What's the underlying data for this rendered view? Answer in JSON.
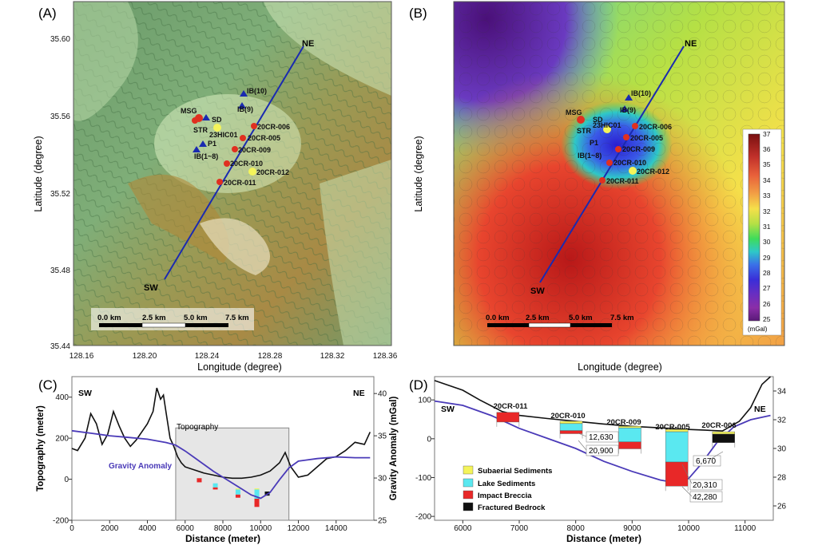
{
  "panels": {
    "A": {
      "label": "(A)",
      "xlabel": "Longitude (degree)",
      "ylabel": "Latitude (degree)",
      "xticks": [
        "128.16",
        "128.20",
        "128.24",
        "128.28",
        "128.32",
        "128.36"
      ],
      "yticks": [
        "35.60",
        "35.56",
        "35.52",
        "35.48",
        "35.44"
      ],
      "profile_ends": [
        "NE",
        "SW"
      ],
      "sites": [
        {
          "label": "MSG"
        },
        {
          "label": "SD"
        },
        {
          "label": "STR"
        },
        {
          "label": "23HIC01"
        },
        {
          "label": "P1"
        },
        {
          "label": "IB(1~8)"
        },
        {
          "label": "IB(9)"
        },
        {
          "label": "IB(10)"
        },
        {
          "label": "20CR-006"
        },
        {
          "label": "20CR-005"
        },
        {
          "label": "20CR-009"
        },
        {
          "label": "20CR-010"
        },
        {
          "label": "20CR-012"
        },
        {
          "label": "20CR-011"
        }
      ],
      "scalebar": [
        "0.0 km",
        "2.5 km",
        "5.0 km",
        "7.5 km"
      ]
    },
    "B": {
      "label": "(B)",
      "xlabel": "Longitude (degree)",
      "ylabel": "Latitude (degree)",
      "colorbar": {
        "ticks": [
          "37",
          "36",
          "35",
          "34",
          "33",
          "32",
          "31",
          "30",
          "29",
          "28",
          "27",
          "26",
          "25"
        ],
        "unit": "(mGal)",
        "colors": [
          "#7a1010",
          "#c0302a",
          "#e8603a",
          "#f2a045",
          "#f5e04a",
          "#b5e045",
          "#3fdc5a",
          "#2ec8c8",
          "#3a70e8",
          "#3a2ed8",
          "#6a2ec0",
          "#8a2ea8",
          "#5a1a78"
        ]
      }
    },
    "C": {
      "label": "(C)",
      "left_end": "SW",
      "right_end": "NE",
      "xlabel": "Distance (meter)",
      "ylabel_left": "Topography (meter)",
      "ylabel_right": "Gravity Anomaly (mGal)",
      "topo_label": "Topography",
      "gravity_label": "Gravity Anomaly",
      "xticks": [
        "0",
        "2000",
        "4000",
        "6000",
        "8000",
        "10000",
        "12000",
        "14000"
      ],
      "yticks_left": [
        "400",
        "200",
        "0",
        "-200"
      ],
      "yticks_right": [
        "40",
        "35",
        "30",
        "25"
      ]
    },
    "D": {
      "label": "(D)",
      "left_end": "SW",
      "right_end": "NE",
      "xlabel": "Distance (meter)",
      "xticks": [
        "6000",
        "7000",
        "8000",
        "9000",
        "10000",
        "11000"
      ],
      "yticks_left": [
        "100",
        "0",
        "-100",
        "-200"
      ],
      "yticks_right": [
        "34",
        "32",
        "30",
        "28",
        "26"
      ],
      "boreholes": [
        {
          "label": "20CR-011"
        },
        {
          "label": "20CR-010"
        },
        {
          "label": "20CR-009"
        },
        {
          "label": "20CR-005"
        },
        {
          "label": "20CR-006"
        }
      ],
      "ages": [
        "12,630",
        "20,900",
        "6,670",
        "20,310",
        "42,280"
      ],
      "legend": [
        {
          "label": "Subaerial Sediments",
          "color": "#f4f45a"
        },
        {
          "label": "Lake Sediments",
          "color": "#5ae8f0"
        },
        {
          "label": "Impact Breccia",
          "color": "#e82828"
        },
        {
          "label": "Fractured Bedrock",
          "color": "#101010"
        }
      ]
    }
  },
  "chart_data": [
    {
      "type": "line",
      "panel": "C",
      "xlabel": "Distance (meter)",
      "ylabel": "Topography (meter)",
      "xlim": [
        0,
        16000
      ],
      "ylim": [
        -200,
        500
      ],
      "y2lim": [
        25,
        42
      ],
      "series": [
        {
          "name": "Topography",
          "axis": "left",
          "x": [
            0,
            300,
            700,
            1000,
            1300,
            1600,
            1900,
            2200,
            2500,
            2800,
            3100,
            3400,
            3700,
            4000,
            4300,
            4500,
            4700,
            4850,
            5000,
            5200,
            5400,
            5600,
            5800,
            6000,
            6500,
            7000,
            7500,
            8000,
            8500,
            9000,
            9500,
            10000,
            10500,
            11000,
            11300,
            11600,
            12000,
            12500,
            13000,
            13500,
            14000,
            14500,
            15000,
            15500,
            15800
          ],
          "y": [
            150,
            140,
            200,
            320,
            270,
            170,
            220,
            330,
            260,
            200,
            160,
            190,
            230,
            270,
            330,
            445,
            390,
            410,
            320,
            200,
            160,
            110,
            80,
            60,
            45,
            30,
            20,
            10,
            5,
            5,
            10,
            20,
            40,
            80,
            130,
            60,
            10,
            20,
            60,
            100,
            110,
            140,
            180,
            170,
            230
          ]
        },
        {
          "name": "Gravity Anomaly",
          "axis": "right",
          "x": [
            0,
            1000,
            2000,
            3000,
            4000,
            5000,
            5500,
            6000,
            6500,
            7000,
            7500,
            8000,
            8500,
            9000,
            9500,
            10000,
            10500,
            11000,
            11500,
            12000,
            13000,
            14000,
            15000,
            15800
          ],
          "y": [
            35.6,
            35.3,
            35.0,
            34.8,
            34.6,
            34.2,
            33.9,
            33.2,
            32.4,
            31.6,
            30.8,
            30.1,
            29.4,
            28.7,
            28.0,
            27.6,
            28.3,
            29.8,
            31.2,
            32.0,
            32.3,
            32.5,
            32.4,
            32.4
          ]
        }
      ]
    },
    {
      "type": "line",
      "panel": "D",
      "xlabel": "Distance (meter)",
      "xlim": [
        5500,
        11500
      ],
      "ylim": [
        -210,
        160
      ],
      "y2lim": [
        25,
        35
      ],
      "series": [
        {
          "name": "Topography",
          "axis": "left",
          "x": [
            5500,
            6000,
            6300,
            6500,
            6700,
            7000,
            7500,
            8000,
            8500,
            9000,
            9500,
            10000,
            10300,
            10600,
            10900,
            11100,
            11300,
            11450
          ],
          "y": [
            150,
            125,
            100,
            85,
            70,
            60,
            52,
            45,
            38,
            32,
            28,
            24,
            22,
            20,
            45,
            80,
            140,
            160
          ]
        },
        {
          "name": "Gravity Anomaly",
          "axis": "right",
          "x": [
            5500,
            6000,
            6500,
            7000,
            7500,
            8000,
            8500,
            9000,
            9500,
            9800,
            10000,
            10200,
            10500,
            10800,
            11100,
            11450
          ],
          "y": [
            33.3,
            33.0,
            32.3,
            31.4,
            30.7,
            30.0,
            29.1,
            28.4,
            27.8,
            27.6,
            27.9,
            28.8,
            30.4,
            31.5,
            32.0,
            32.3
          ]
        }
      ]
    }
  ]
}
